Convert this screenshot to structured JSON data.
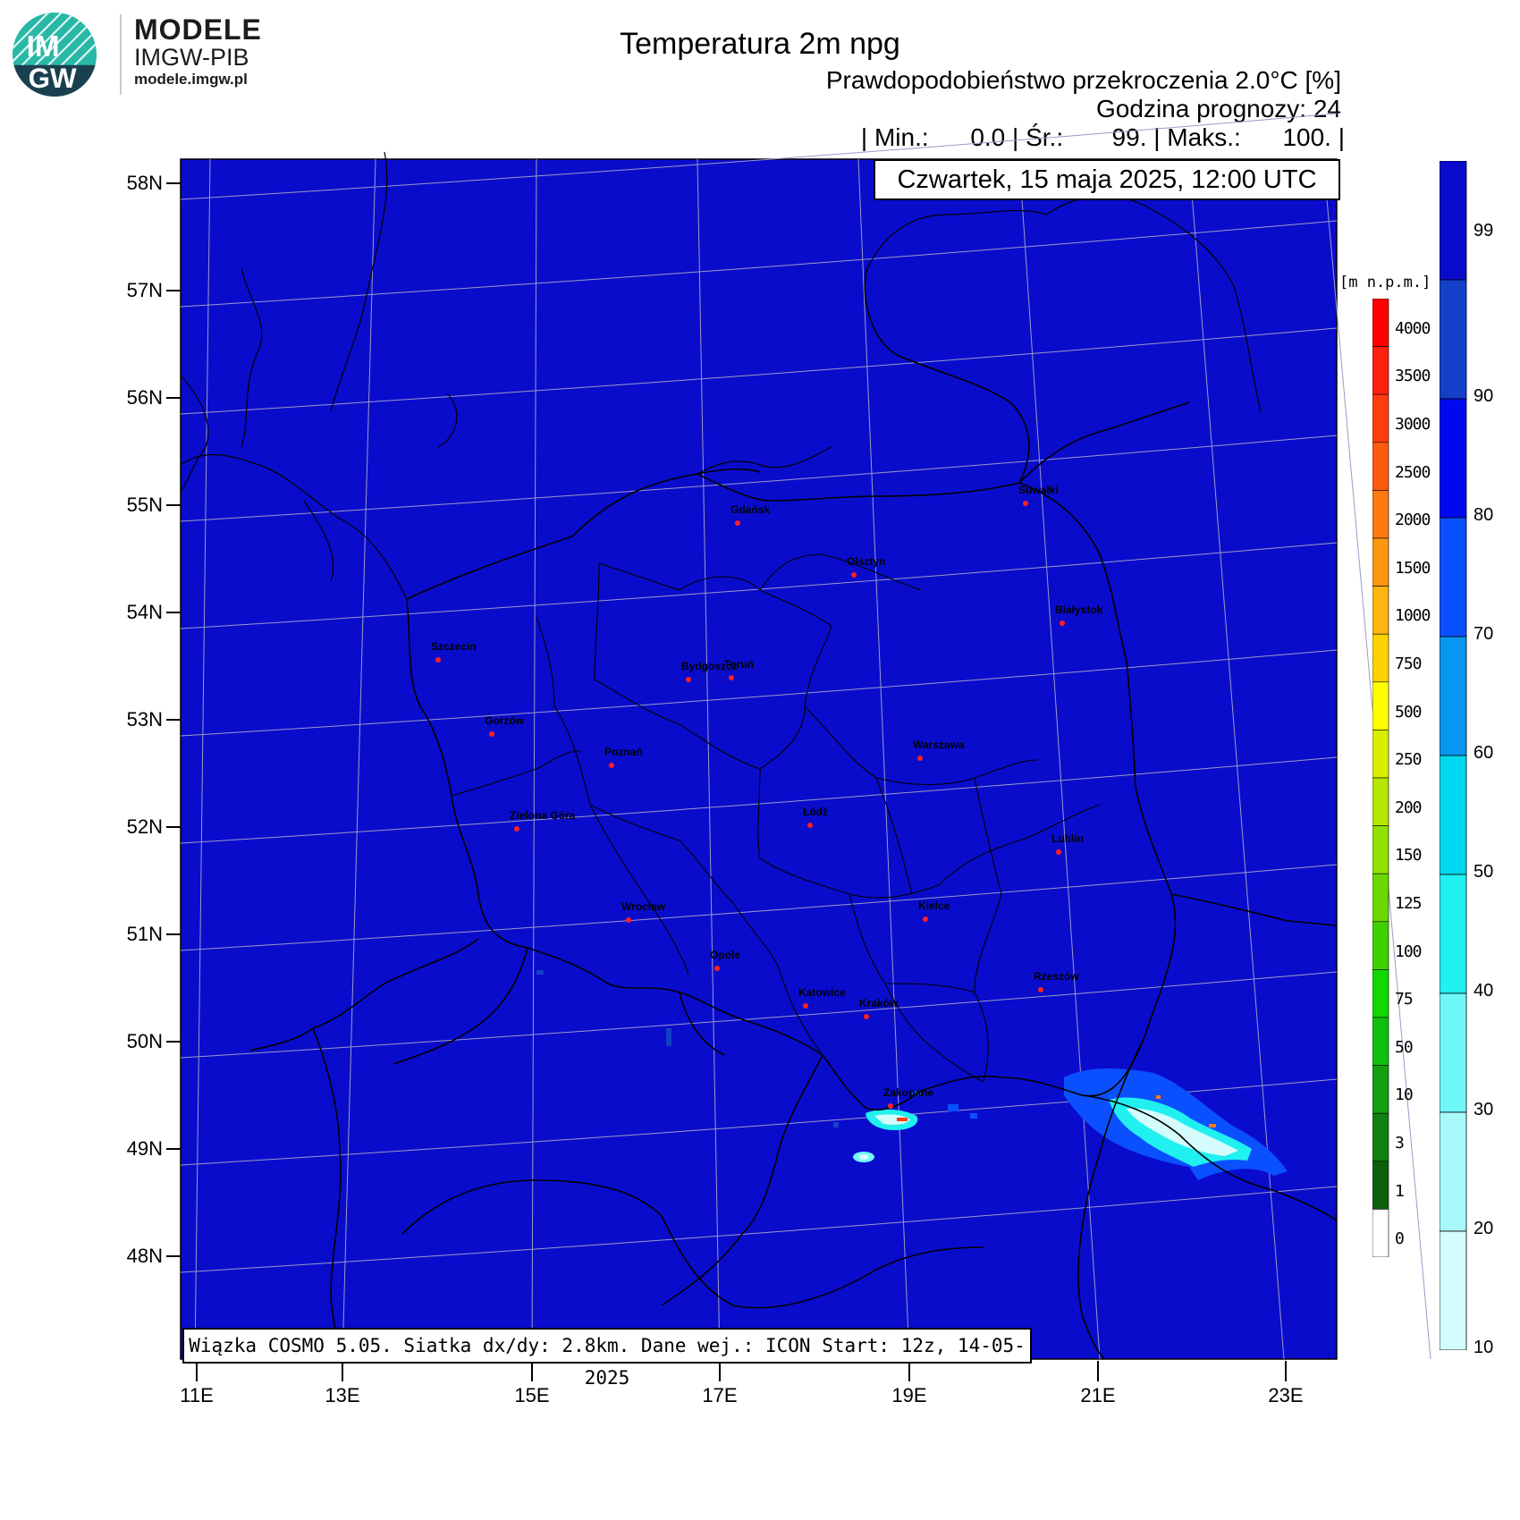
{
  "brand": {
    "badge_top": "IM",
    "badge_bottom": "GW",
    "name": "MODELE",
    "org": "IMGW-PIB",
    "url": "modele.imgw.pl"
  },
  "header": {
    "title": "Temperatura 2m npg",
    "subtitle": "Prawdopodobieństwo przekroczenia 2.0°C [%]",
    "forecast_hour": "Godzina prognozy: 24",
    "stats": "| Min.:      0.0 | Śr.:       99. | Maks.:      100. |",
    "date": "Czwartek, 15 maja 2025, 12:00 UTC"
  },
  "footer": {
    "model_info": "Wiązka COSMO 5.05. Siatka dx/dy: 2.8km. Dane wej.: ICON Start: 12z, 14-05-2025"
  },
  "map": {
    "lat_labels": [
      "58N",
      "57N",
      "56N",
      "55N",
      "54N",
      "53N",
      "52N",
      "51N",
      "50N",
      "49N",
      "48N"
    ],
    "lon_labels": [
      "11E",
      "13E",
      "15E",
      "17E",
      "19E",
      "21E",
      "23E"
    ],
    "cities": [
      {
        "name": "Gdańsk"
      },
      {
        "name": "Suwałki"
      },
      {
        "name": "Olsztyn"
      },
      {
        "name": "Białystok"
      },
      {
        "name": "Szczecin"
      },
      {
        "name": "Bydgoszcz"
      },
      {
        "name": "Toruń"
      },
      {
        "name": "Gorzów"
      },
      {
        "name": "Poznań"
      },
      {
        "name": "Warszawa"
      },
      {
        "name": "Zielona Góra"
      },
      {
        "name": "Łódź"
      },
      {
        "name": "Lublin"
      },
      {
        "name": "Wrocław"
      },
      {
        "name": "Kielce"
      },
      {
        "name": "Opole"
      },
      {
        "name": "Rzeszów"
      },
      {
        "name": "Katowice"
      },
      {
        "name": "Kraków"
      },
      {
        "name": "Zakopane"
      }
    ],
    "colors": {
      "field": "#0a0ccc",
      "border": "#000000",
      "grid": "#9a9ac8",
      "city_dot": "#ff2020"
    }
  },
  "probability_scale": {
    "labels": [
      "99",
      "90",
      "80",
      "70",
      "60",
      "50",
      "40",
      "30",
      "20",
      "10"
    ],
    "colors": [
      "#0a0ccc",
      "#1440c8",
      "#0008f0",
      "#0a50ff",
      "#0896f0",
      "#00d8f0",
      "#20f0f0",
      "#70f8f8",
      "#a8fafa",
      "#d4fcfc"
    ]
  },
  "height_scale": {
    "unit": "[m n.p.m.]",
    "labels": [
      "4000",
      "3500",
      "3000",
      "2500",
      "2000",
      "1500",
      "1000",
      "750",
      "500",
      "250",
      "200",
      "150",
      "125",
      "100",
      "75",
      "50",
      "10",
      "3",
      "1",
      "0"
    ],
    "colors": [
      "#ff0000",
      "#ff2010",
      "#ff3c10",
      "#ff5a10",
      "#ff7810",
      "#ff9610",
      "#ffb410",
      "#ffd200",
      "#ffff00",
      "#d8f000",
      "#b4e600",
      "#90e000",
      "#6cd800",
      "#40d000",
      "#10d800",
      "#10c010",
      "#10a010",
      "#108010",
      "#0c600c",
      "#ffffff"
    ]
  }
}
